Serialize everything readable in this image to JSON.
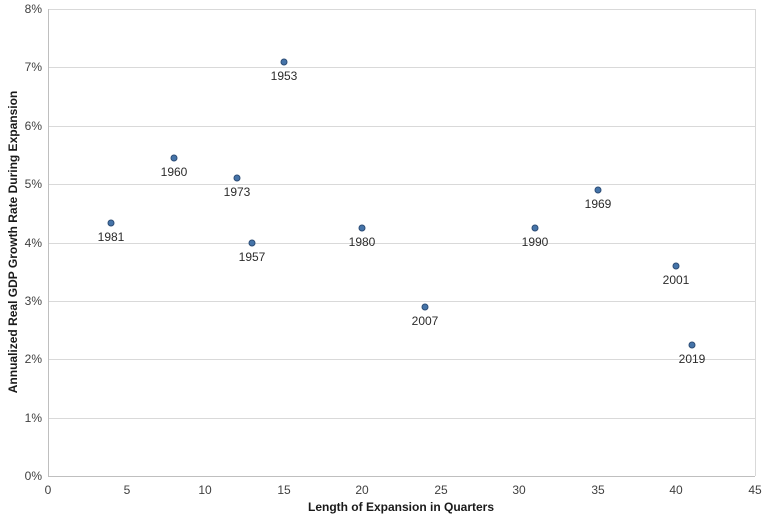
{
  "chart_data": {
    "type": "scatter",
    "title": "",
    "xlabel": "Length of Expansion in Quarters",
    "ylabel": "Annualized Real GDP Growth Rate During Expansion",
    "xlim": [
      0,
      45
    ],
    "ylim": [
      0,
      8
    ],
    "grid": "horizontal",
    "legend": "none",
    "x_ticks": [
      {
        "value": 0,
        "label": "0"
      },
      {
        "value": 5,
        "label": "5"
      },
      {
        "value": 10,
        "label": "10"
      },
      {
        "value": 15,
        "label": "15"
      },
      {
        "value": 20,
        "label": "20"
      },
      {
        "value": 25,
        "label": "25"
      },
      {
        "value": 30,
        "label": "30"
      },
      {
        "value": 35,
        "label": "35"
      },
      {
        "value": 40,
        "label": "40"
      },
      {
        "value": 45,
        "label": "45"
      }
    ],
    "y_ticks": [
      {
        "value": 0,
        "label": "0%"
      },
      {
        "value": 1,
        "label": "1%"
      },
      {
        "value": 2,
        "label": "2%"
      },
      {
        "value": 3,
        "label": "3%"
      },
      {
        "value": 4,
        "label": "4%"
      },
      {
        "value": 5,
        "label": "5%"
      },
      {
        "value": 6,
        "label": "6%"
      },
      {
        "value": 7,
        "label": "7%"
      },
      {
        "value": 8,
        "label": "8%"
      }
    ],
    "points": [
      {
        "label": "1981",
        "x": 4,
        "y": 4.33
      },
      {
        "label": "1960",
        "x": 8,
        "y": 5.45
      },
      {
        "label": "1973",
        "x": 12,
        "y": 5.1
      },
      {
        "label": "1957",
        "x": 13,
        "y": 4.0
      },
      {
        "label": "1953",
        "x": 15,
        "y": 7.1
      },
      {
        "label": "1980",
        "x": 20,
        "y": 4.25
      },
      {
        "label": "2007",
        "x": 24,
        "y": 2.9
      },
      {
        "label": "1990",
        "x": 31,
        "y": 4.25
      },
      {
        "label": "1969",
        "x": 35,
        "y": 4.9
      },
      {
        "label": "2001",
        "x": 40,
        "y": 3.6
      },
      {
        "label": "2019",
        "x": 41,
        "y": 2.25
      }
    ],
    "colors": {
      "point_fill": "#4574a9",
      "point_stroke": "#2d4d76",
      "gridline": "#d9d9d9",
      "axis_line": "#bfbfbf",
      "tick_text": "#404040",
      "title_text": "#1a1a1a",
      "background": "#ffffff"
    }
  }
}
